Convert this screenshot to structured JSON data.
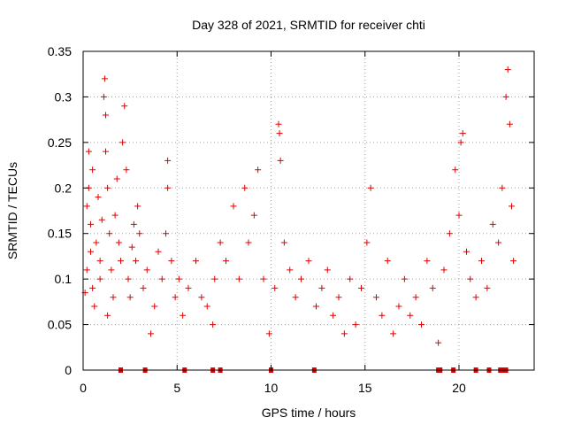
{
  "chart_data": {
    "type": "scatter",
    "title": "Day 328 of 2021, SRMTID for receiver chti",
    "xlabel": "GPS time / hours",
    "ylabel": "SRMTID / TECUs",
    "xlim": [
      0,
      24
    ],
    "ylim": [
      0,
      0.35
    ],
    "x_ticks": [
      0,
      5,
      10,
      15,
      20
    ],
    "x_tick_labels": [
      "0",
      "5",
      "10",
      "15",
      "20"
    ],
    "y_ticks": [
      0,
      0.05,
      0.1,
      0.15,
      0.2,
      0.25,
      0.3,
      0.35
    ],
    "y_tick_labels": [
      "0",
      "0.05",
      "0.1",
      "0.15",
      "0.2",
      "0.25",
      "0.3",
      "0.35"
    ],
    "grid": true,
    "marker": "+",
    "color": "#e00000",
    "series": [
      {
        "name": "SRMTID",
        "points": [
          [
            0.1,
            0.085
          ],
          [
            0.2,
            0.11
          ],
          [
            0.2,
            0.18
          ],
          [
            0.3,
            0.24
          ],
          [
            0.3,
            0.2
          ],
          [
            0.4,
            0.16
          ],
          [
            0.4,
            0.13
          ],
          [
            0.5,
            0.09
          ],
          [
            0.5,
            0.22
          ],
          [
            0.6,
            0.07
          ],
          [
            0.7,
            0.14
          ],
          [
            0.8,
            0.19
          ],
          [
            0.9,
            0.12
          ],
          [
            0.9,
            0.1
          ],
          [
            1.0,
            0.165
          ],
          [
            1.1,
            0.3
          ],
          [
            1.15,
            0.32
          ],
          [
            1.2,
            0.28
          ],
          [
            1.2,
            0.24
          ],
          [
            1.3,
            0.2
          ],
          [
            1.3,
            0.06
          ],
          [
            1.4,
            0.15
          ],
          [
            1.5,
            0.11
          ],
          [
            1.6,
            0.08
          ],
          [
            1.7,
            0.17
          ],
          [
            1.8,
            0.21
          ],
          [
            1.9,
            0.14
          ],
          [
            2.0,
            0.12
          ],
          [
            2.1,
            0.25
          ],
          [
            2.2,
            0.29
          ],
          [
            2.3,
            0.22
          ],
          [
            2.4,
            0.1
          ],
          [
            2.5,
            0.08
          ],
          [
            2.6,
            0.135
          ],
          [
            2.7,
            0.16
          ],
          [
            2.8,
            0.12
          ],
          [
            2.9,
            0.18
          ],
          [
            3.0,
            0.15
          ],
          [
            3.2,
            0.09
          ],
          [
            3.4,
            0.11
          ],
          [
            3.6,
            0.04
          ],
          [
            3.8,
            0.07
          ],
          [
            4.0,
            0.13
          ],
          [
            4.2,
            0.1
          ],
          [
            4.4,
            0.15
          ],
          [
            4.5,
            0.23
          ],
          [
            4.5,
            0.2
          ],
          [
            4.7,
            0.12
          ],
          [
            4.9,
            0.08
          ],
          [
            5.1,
            0.1
          ],
          [
            5.3,
            0.06
          ],
          [
            5.6,
            0.09
          ],
          [
            6.0,
            0.12
          ],
          [
            6.3,
            0.08
          ],
          [
            6.6,
            0.07
          ],
          [
            6.9,
            0.05
          ],
          [
            7.0,
            0.1
          ],
          [
            7.3,
            0.14
          ],
          [
            7.6,
            0.12
          ],
          [
            8.0,
            0.18
          ],
          [
            8.3,
            0.1
          ],
          [
            8.6,
            0.2
          ],
          [
            8.8,
            0.14
          ],
          [
            9.1,
            0.17
          ],
          [
            9.3,
            0.22
          ],
          [
            9.6,
            0.1
          ],
          [
            9.9,
            0.04
          ],
          [
            10.2,
            0.09
          ],
          [
            10.4,
            0.27
          ],
          [
            10.45,
            0.26
          ],
          [
            10.5,
            0.23
          ],
          [
            10.7,
            0.14
          ],
          [
            11.0,
            0.11
          ],
          [
            11.3,
            0.08
          ],
          [
            11.6,
            0.1
          ],
          [
            12.0,
            0.12
          ],
          [
            12.4,
            0.07
          ],
          [
            12.7,
            0.09
          ],
          [
            13.0,
            0.11
          ],
          [
            13.3,
            0.06
          ],
          [
            13.6,
            0.08
          ],
          [
            13.9,
            0.04
          ],
          [
            14.2,
            0.1
          ],
          [
            14.5,
            0.05
          ],
          [
            14.8,
            0.09
          ],
          [
            15.1,
            0.14
          ],
          [
            15.3,
            0.2
          ],
          [
            15.6,
            0.08
          ],
          [
            15.9,
            0.06
          ],
          [
            16.2,
            0.12
          ],
          [
            16.5,
            0.04
          ],
          [
            16.8,
            0.07
          ],
          [
            17.1,
            0.1
          ],
          [
            17.4,
            0.06
          ],
          [
            17.7,
            0.08
          ],
          [
            18.0,
            0.05
          ],
          [
            18.3,
            0.12
          ],
          [
            18.6,
            0.09
          ],
          [
            18.9,
            0.03
          ],
          [
            19.2,
            0.11
          ],
          [
            19.5,
            0.15
          ],
          [
            19.8,
            0.22
          ],
          [
            20.0,
            0.17
          ],
          [
            20.1,
            0.25
          ],
          [
            20.2,
            0.26
          ],
          [
            20.4,
            0.13
          ],
          [
            20.6,
            0.1
          ],
          [
            20.9,
            0.08
          ],
          [
            21.2,
            0.12
          ],
          [
            21.5,
            0.09
          ],
          [
            21.8,
            0.16
          ],
          [
            22.1,
            0.14
          ],
          [
            22.3,
            0.2
          ],
          [
            22.5,
            0.3
          ],
          [
            22.6,
            0.33
          ],
          [
            22.7,
            0.27
          ],
          [
            22.8,
            0.18
          ],
          [
            22.9,
            0.12
          ]
        ]
      }
    ],
    "marker_row": {
      "y": 0,
      "x": [
        2.0,
        3.3,
        5.4,
        6.9,
        7.3,
        10.0,
        12.3,
        18.9,
        19.0,
        19.7,
        20.9,
        21.6,
        22.2,
        22.3,
        22.4,
        22.5
      ]
    }
  }
}
